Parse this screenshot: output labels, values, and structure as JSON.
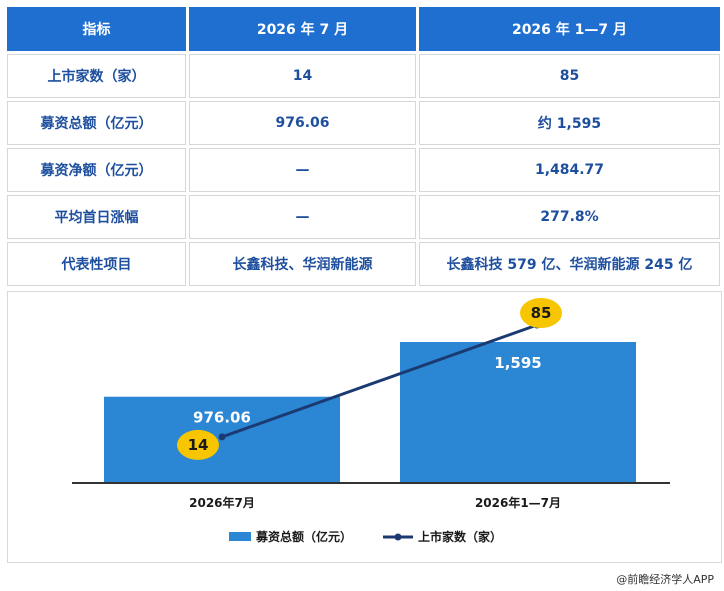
{
  "table": {
    "headers": [
      "指标",
      "2026 年 7 月",
      "2026 年 1—7 月"
    ],
    "rows": [
      [
        "上市家数（家）",
        "14",
        "85"
      ],
      [
        "募资总额（亿元）",
        "976.06",
        "约 1,595"
      ],
      [
        "募资净额（亿元）",
        "—",
        "1,484.77"
      ],
      [
        "平均首日涨幅",
        "—",
        "277.8%"
      ],
      [
        "代表性项目",
        "长鑫科技、华润新能源",
        "长鑫科技 579 亿、华润新能源 245 亿"
      ]
    ]
  },
  "chart_data": {
    "type": "bar",
    "categories": [
      "2026年7月",
      "2026年1—7月"
    ],
    "series": [
      {
        "name": "募资总额（亿元）",
        "type": "bar",
        "values": [
          976.06,
          1595
        ],
        "labels": [
          "976.06",
          "1,595"
        ],
        "color": "#2b86d3"
      },
      {
        "name": "上市家数（家）",
        "type": "line",
        "values": [
          14,
          85
        ],
        "labels": [
          "14",
          "85"
        ],
        "color": "#1c3a72",
        "label_color": "#f7c600"
      }
    ]
  },
  "footer": {
    "credit": "@前瞻经济学人APP"
  }
}
